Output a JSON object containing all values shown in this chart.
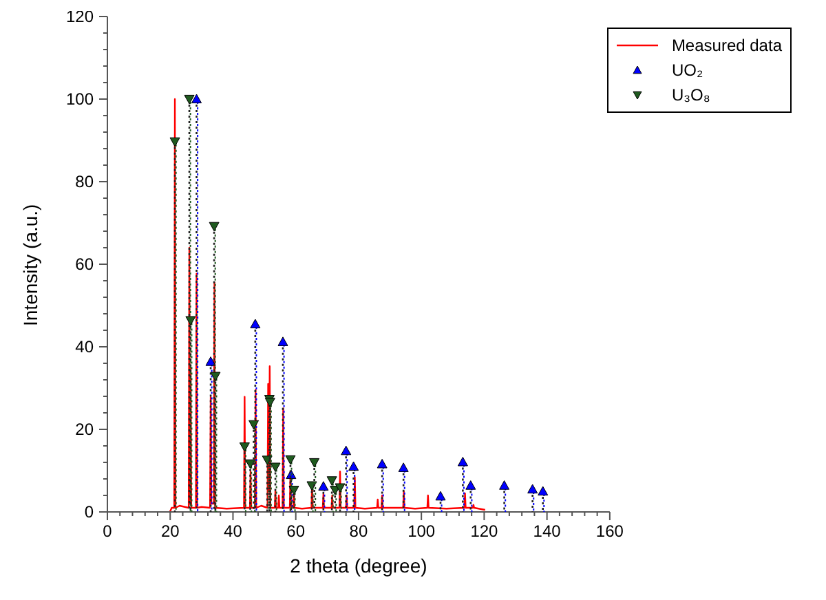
{
  "chart_data": {
    "type": "line",
    "xlabel": "2 theta (degree)",
    "ylabel": "Intensity (a.u.)",
    "xlim": [
      0,
      160
    ],
    "ylim": [
      0,
      120
    ],
    "xticks": [
      0,
      {
        "value": 4,
        "label": null
      },
      {
        "value": 8,
        "label": null
      },
      {
        "value": 12,
        "label": null
      },
      {
        "value": 16,
        "label": null
      },
      20,
      {
        "value": 24,
        "label": null
      },
      {
        "value": 28,
        "label": null
      },
      {
        "value": 32,
        "label": null
      },
      {
        "value": 36,
        "label": null
      },
      40,
      {
        "value": 44,
        "label": null
      },
      {
        "value": 48,
        "label": null
      },
      {
        "value": 52,
        "label": null
      },
      {
        "value": 56,
        "label": null
      },
      60,
      {
        "value": 64,
        "label": null
      },
      {
        "value": 68,
        "label": null
      },
      {
        "value": 72,
        "label": null
      },
      {
        "value": 76,
        "label": null
      },
      80,
      {
        "value": 84,
        "label": null
      },
      {
        "value": 88,
        "label": null
      },
      {
        "value": 92,
        "label": null
      },
      {
        "value": 96,
        "label": null
      },
      100,
      {
        "value": 104,
        "label": null
      },
      {
        "value": 108,
        "label": null
      },
      {
        "value": 112,
        "label": null
      },
      {
        "value": 116,
        "label": null
      },
      120,
      {
        "value": 124,
        "label": null
      },
      {
        "value": 128,
        "label": null
      },
      {
        "value": 132,
        "label": null
      },
      {
        "value": 136,
        "label": null
      },
      140,
      {
        "value": 144,
        "label": null
      },
      {
        "value": 148,
        "label": null
      },
      {
        "value": 152,
        "label": null
      },
      {
        "value": 156,
        "label": null
      },
      160
    ],
    "yticks": [
      0,
      {
        "value": 4,
        "label": null
      },
      {
        "value": 8,
        "label": null
      },
      {
        "value": 12,
        "label": null
      },
      {
        "value": 16,
        "label": null
      },
      20,
      {
        "value": 24,
        "label": null
      },
      {
        "value": 28,
        "label": null
      },
      {
        "value": 32,
        "label": null
      },
      {
        "value": 36,
        "label": null
      },
      40,
      {
        "value": 44,
        "label": null
      },
      {
        "value": 48,
        "label": null
      },
      {
        "value": 52,
        "label": null
      },
      {
        "value": 56,
        "label": null
      },
      60,
      {
        "value": 64,
        "label": null
      },
      {
        "value": 68,
        "label": null
      },
      {
        "value": 72,
        "label": null
      },
      {
        "value": 76,
        "label": null
      },
      80,
      {
        "value": 84,
        "label": null
      },
      {
        "value": 88,
        "label": null
      },
      {
        "value": 92,
        "label": null
      },
      {
        "value": 96,
        "label": null
      },
      100,
      {
        "value": 104,
        "label": null
      },
      {
        "value": 108,
        "label": null
      },
      {
        "value": 112,
        "label": null
      },
      {
        "value": 116,
        "label": null
      },
      120
    ],
    "legend": "top right",
    "series": [
      {
        "name": "Measured data",
        "color": "#ff0000",
        "marker": "none",
        "line_style": "solid",
        "x": [
          19.9,
          20.5,
          21.3,
          21.5,
          21.7,
          23,
          25.9,
          26.1,
          26.3,
          26.5,
          26.7,
          28.2,
          28.4,
          28.6,
          30,
          32.7,
          32.9,
          33.1,
          33.9,
          34.1,
          34.3,
          38,
          43.5,
          43.7,
          43.9,
          45.4,
          45.6,
          45.8,
          47.0,
          47.2,
          47.4,
          49,
          51.0,
          51.2,
          51.45,
          51.7,
          51.9,
          53.3,
          53.5,
          53.7,
          54.4,
          54.6,
          54.8,
          55.8,
          56.0,
          56.2,
          58.1,
          58.3,
          58.5,
          59.2,
          59.4,
          59.6,
          62,
          65.0,
          65.2,
          65.4,
          68.6,
          68.8,
          69.0,
          71.4,
          71.6,
          71.8,
          73.9,
          74.1,
          74.3,
          76.0,
          76.2,
          76.4,
          78.6,
          78.8,
          79.0,
          82,
          85.9,
          86.1,
          86.3,
          87.3,
          87.5,
          87.7,
          94.2,
          94.4,
          94.6,
          98,
          101.9,
          102.1,
          102.3,
          108,
          113.7,
          113.9,
          114.1,
          116.4,
          116.6,
          116.8,
          120.3
        ],
        "values": [
          0,
          1,
          1,
          100,
          1,
          1.5,
          1,
          64,
          2,
          35,
          1,
          1,
          57.7,
          1,
          1.2,
          1,
          27.8,
          2,
          2,
          55.6,
          1,
          0.8,
          1,
          27.9,
          1,
          1,
          9.7,
          1,
          1,
          29.6,
          1,
          1.5,
          1,
          31,
          5,
          35.3,
          1,
          1,
          5,
          1,
          1,
          4,
          1,
          1,
          25.1,
          1,
          1,
          9.7,
          1,
          1,
          5,
          1,
          0.8,
          1,
          7,
          1,
          1,
          4.3,
          1,
          1,
          4,
          1,
          1,
          9.8,
          1,
          1,
          4,
          1,
          1,
          8.4,
          1,
          0.8,
          1,
          3,
          1,
          1,
          4,
          1,
          1,
          5,
          1,
          0.8,
          1,
          4,
          1,
          0.8,
          1,
          4.5,
          1,
          1,
          1.7,
          1,
          0.5
        ]
      },
      {
        "name": "UO₂",
        "type": "lollipop",
        "color": "#0000ff",
        "marker": "triangle",
        "line_style": "dotted",
        "x": [
          28.4,
          32.9,
          47.1,
          55.9,
          58.5,
          68.8,
          76.0,
          78.4,
          87.5,
          94.3,
          106.1,
          113.2,
          115.7,
          126.4,
          135.4,
          138.7
        ],
        "values": [
          100,
          36.4,
          45.5,
          41.2,
          9,
          6.2,
          14.8,
          11,
          11.6,
          10.7,
          3.8,
          12.1,
          6.4,
          6.4,
          5.5,
          5
        ]
      },
      {
        "name": "U₃O₈",
        "type": "lollipop",
        "color": "#1f5a1f",
        "marker": "triangle-down",
        "line_style": "dotted",
        "x": [
          21.5,
          26.1,
          26.5,
          34.0,
          34.4,
          43.7,
          45.5,
          46.6,
          50.9,
          51.6,
          51.8,
          53.5,
          58.3,
          59.4,
          65.1,
          65.9,
          71.5,
          72.5,
          74.1
        ],
        "values": [
          89.7,
          100,
          46.4,
          69.2,
          32.9,
          15.8,
          11.7,
          21.2,
          12.6,
          27.3,
          26.6,
          10.9,
          12.7,
          5.3,
          6.4,
          12,
          7.6,
          5.3,
          5.9
        ]
      }
    ]
  }
}
